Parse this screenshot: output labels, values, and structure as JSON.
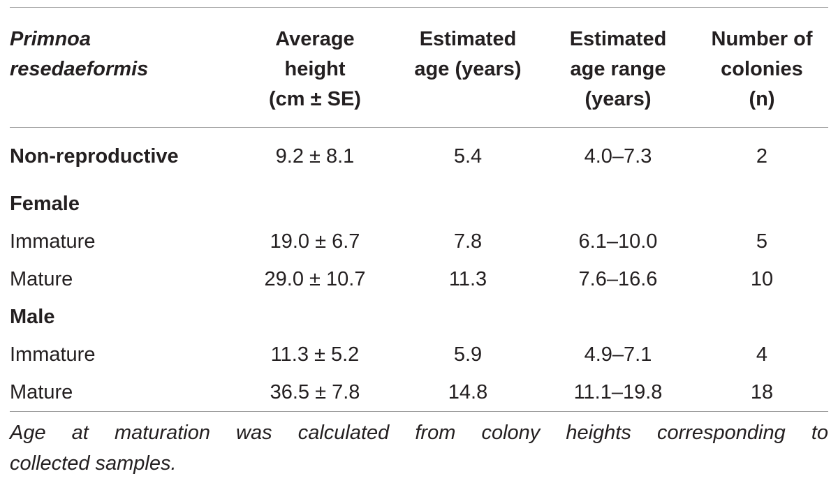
{
  "table": {
    "headers": [
      [
        "Primnoa",
        "resedaeformis"
      ],
      [
        "Average",
        "height",
        "(cm ± SE)"
      ],
      [
        "Estimated",
        "age (years)"
      ],
      [
        "Estimated",
        "age range",
        "(years)"
      ],
      [
        "Number of",
        "colonies",
        "(n)"
      ]
    ],
    "rows": [
      {
        "label": "Non-reproductive",
        "group": true,
        "height": "9.2 ± 8.1",
        "age": "5.4",
        "range": "4.0–7.3",
        "n": "2"
      },
      {
        "label": "Female",
        "group": true,
        "height": "",
        "age": "",
        "range": "",
        "n": ""
      },
      {
        "label": "Immature",
        "group": false,
        "height": "19.0 ± 6.7",
        "age": "7.8",
        "range": "6.1–10.0",
        "n": "5"
      },
      {
        "label": "Mature",
        "group": false,
        "height": "29.0 ± 10.7",
        "age": "11.3",
        "range": "7.6–16.6",
        "n": "10"
      },
      {
        "label": "Male",
        "group": true,
        "height": "",
        "age": "",
        "range": "",
        "n": ""
      },
      {
        "label": "Immature",
        "group": false,
        "height": "11.3 ± 5.2",
        "age": "5.9",
        "range": "4.9–7.1",
        "n": "4"
      },
      {
        "label": "Mature",
        "group": false,
        "height": "36.5 ± 7.8",
        "age": "14.8",
        "range": "11.1–19.8",
        "n": "18"
      }
    ]
  },
  "footnote": {
    "line1": "Age at maturation was calculated from colony heights corresponding to",
    "line2": "collected samples."
  }
}
